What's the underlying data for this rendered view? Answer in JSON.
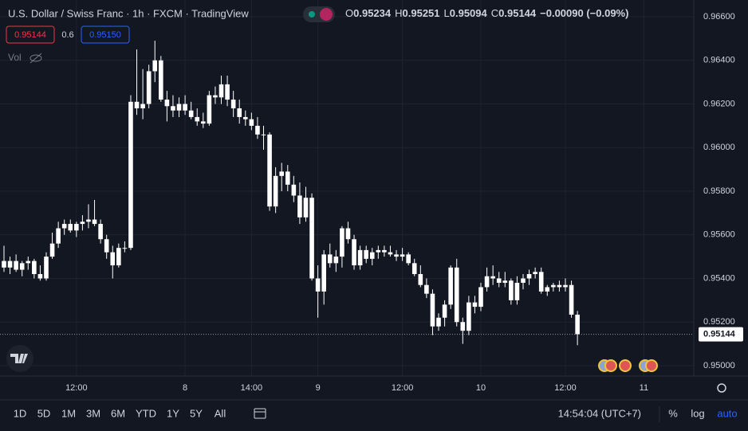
{
  "chart_data": {
    "type": "candlestick",
    "title": "U.S. Dollar / Swiss Franc · 1h · FXCM · TradingView",
    "legend_values": [
      {
        "label": "O",
        "value": "0.95234"
      },
      {
        "label": "H",
        "value": "0.95251"
      },
      {
        "label": "L",
        "value": "0.95094"
      },
      {
        "label": "C",
        "value": "0.95144"
      },
      {
        "label": "",
        "value": "−0.00090 (−0.09%)"
      }
    ],
    "bid": "0.95144",
    "spread": "0.6",
    "ask": "0.95150",
    "volume_label": "Vol",
    "last_price_label": "0.95144",
    "last_price": 0.95144,
    "color": "#ffffff",
    "open": [
      0.9548,
      0.9545,
      0.9548,
      0.9544,
      0.9547,
      0.9548,
      0.9542,
      0.954,
      0.955,
      0.9556,
      0.9563,
      0.9565,
      0.9562,
      0.9565,
      0.9566,
      0.9567,
      0.9565,
      0.9558,
      0.9552,
      0.9546,
      0.9554,
      0.9554,
      0.9621,
      0.9618,
      0.962,
      0.9635,
      0.964,
      0.9622,
      0.9619,
      0.9617,
      0.962,
      0.9617,
      0.9614,
      0.9612,
      0.9611,
      0.9624,
      0.9623,
      0.9629,
      0.9622,
      0.9618,
      0.9614,
      0.9613,
      0.961,
      0.9606,
      0.9606,
      0.9573,
      0.9587,
      0.9589,
      0.9583,
      0.9578,
      0.9568,
      0.9577,
      0.954,
      0.9534,
      0.9551,
      0.9547,
      0.955,
      0.9563,
      0.9558,
      0.9546,
      0.9553,
      0.9549,
      0.9552,
      0.9553,
      0.9552,
      0.9551,
      0.955,
      0.9551,
      0.9547,
      0.9542,
      0.9537,
      0.9533,
      0.9518,
      0.9522,
      0.9528,
      0.9545,
      0.952,
      0.9516,
      0.9529,
      0.9527,
      0.9536,
      0.9541,
      0.954,
      0.9538,
      0.9539,
      0.953,
      0.9538,
      0.954,
      0.9542,
      0.9543,
      0.9534,
      0.9536,
      0.9537,
      0.9536,
      0.9537,
      0.95234
    ],
    "high": [
      0.9555,
      0.955,
      0.9551,
      0.9548,
      0.955,
      0.9549,
      0.9546,
      0.9552,
      0.9561,
      0.9566,
      0.9567,
      0.9567,
      0.9566,
      0.9569,
      0.9574,
      0.9576,
      0.9567,
      0.956,
      0.9555,
      0.9556,
      0.9557,
      0.9624,
      0.9645,
      0.9636,
      0.9638,
      0.9649,
      0.9642,
      0.9626,
      0.9624,
      0.9623,
      0.9624,
      0.9621,
      0.9618,
      0.9616,
      0.9626,
      0.9628,
      0.9633,
      0.9633,
      0.9626,
      0.9622,
      0.9617,
      0.9616,
      0.9614,
      0.961,
      0.9607,
      0.9591,
      0.9593,
      0.9592,
      0.9587,
      0.9584,
      0.9582,
      0.9579,
      0.9546,
      0.9553,
      0.9556,
      0.9553,
      0.9564,
      0.9566,
      0.956,
      0.9555,
      0.9555,
      0.9554,
      0.9555,
      0.9555,
      0.9555,
      0.9553,
      0.9554,
      0.9552,
      0.9549,
      0.9546,
      0.954,
      0.9535,
      0.9524,
      0.953,
      0.9546,
      0.9549,
      0.9522,
      0.9532,
      0.9532,
      0.9538,
      0.9545,
      0.9546,
      0.9543,
      0.9543,
      0.954,
      0.9541,
      0.9542,
      0.9544,
      0.9545,
      0.9545,
      0.9537,
      0.9538,
      0.9539,
      0.954,
      0.9539,
      0.95251
    ],
    "low": [
      0.9543,
      0.9542,
      0.9543,
      0.9541,
      0.9544,
      0.954,
      0.9539,
      0.9539,
      0.9549,
      0.9554,
      0.956,
      0.9561,
      0.9559,
      0.9562,
      0.9563,
      0.9564,
      0.9556,
      0.9549,
      0.954,
      0.9545,
      0.9552,
      0.9553,
      0.9615,
      0.9613,
      0.9618,
      0.963,
      0.9621,
      0.9612,
      0.9614,
      0.9614,
      0.9615,
      0.9613,
      0.961,
      0.9609,
      0.961,
      0.962,
      0.962,
      0.9619,
      0.9614,
      0.9611,
      0.961,
      0.9608,
      0.9604,
      0.9599,
      0.9571,
      0.957,
      0.958,
      0.958,
      0.9575,
      0.9565,
      0.9566,
      0.9539,
      0.9522,
      0.9528,
      0.9545,
      0.9543,
      0.9545,
      0.9556,
      0.9544,
      0.9544,
      0.9547,
      0.9546,
      0.9549,
      0.955,
      0.955,
      0.9548,
      0.9548,
      0.9546,
      0.9541,
      0.9536,
      0.9531,
      0.9514,
      0.9516,
      0.9518,
      0.9526,
      0.9518,
      0.951,
      0.9514,
      0.9524,
      0.9525,
      0.9534,
      0.9537,
      0.9536,
      0.9536,
      0.9528,
      0.9528,
      0.9535,
      0.9537,
      0.954,
      0.9533,
      0.9532,
      0.9534,
      0.9534,
      0.9534,
      0.9522,
      0.95094
    ],
    "close": [
      0.9545,
      0.9548,
      0.9544,
      0.9547,
      0.9548,
      0.9542,
      0.954,
      0.955,
      0.9556,
      0.9563,
      0.9565,
      0.9562,
      0.9565,
      0.9566,
      0.9567,
      0.9565,
      0.9558,
      0.9552,
      0.9546,
      0.9554,
      0.9554,
      0.9621,
      0.9618,
      0.962,
      0.9635,
      0.964,
      0.9622,
      0.9619,
      0.9617,
      0.962,
      0.9617,
      0.9614,
      0.9612,
      0.9611,
      0.9624,
      0.9623,
      0.9629,
      0.9622,
      0.9618,
      0.9614,
      0.9613,
      0.961,
      0.9606,
      0.9606,
      0.9573,
      0.9587,
      0.9589,
      0.9583,
      0.9578,
      0.9568,
      0.9577,
      0.954,
      0.9534,
      0.9551,
      0.9547,
      0.955,
      0.9563,
      0.9558,
      0.9546,
      0.9553,
      0.9549,
      0.9552,
      0.9553,
      0.9552,
      0.9551,
      0.955,
      0.9551,
      0.9547,
      0.9542,
      0.9537,
      0.9533,
      0.9518,
      0.9522,
      0.9528,
      0.9545,
      0.952,
      0.9516,
      0.9529,
      0.9527,
      0.9536,
      0.9541,
      0.954,
      0.9538,
      0.9539,
      0.953,
      0.9538,
      0.954,
      0.9542,
      0.9543,
      0.9534,
      0.9536,
      0.9537,
      0.9536,
      0.9537,
      0.95234,
      0.95144
    ],
    "xlim": [
      -0.66,
      114.27
    ],
    "xticks": [
      {
        "value": 12,
        "label": "12:00"
      },
      {
        "value": 30,
        "label": "8"
      },
      {
        "value": 41,
        "label": "14:00"
      },
      {
        "value": 52,
        "label": "9"
      },
      {
        "value": 66,
        "label": "12:00"
      },
      {
        "value": 79,
        "label": "10"
      },
      {
        "value": 93,
        "label": "12:00"
      },
      {
        "value": 106,
        "label": "11"
      }
    ],
    "ylim": [
      0.95,
      0.966
    ],
    "yticks": [
      {
        "value": 0.95,
        "label": "0.95000"
      },
      {
        "value": 0.952,
        "label": "0.95200"
      },
      {
        "value": 0.954,
        "label": "0.95400"
      },
      {
        "value": 0.956,
        "label": "0.95600"
      },
      {
        "value": 0.958,
        "label": "0.95800"
      },
      {
        "value": 0.96,
        "label": "0.96000"
      },
      {
        "value": 0.962,
        "label": "0.96200"
      },
      {
        "value": 0.964,
        "label": "0.96400"
      },
      {
        "value": 0.966,
        "label": "0.96600"
      }
    ],
    "grid": true,
    "toolbar": {
      "ranges": [
        "1D",
        "5D",
        "1M",
        "3M",
        "6M",
        "YTD",
        "1Y",
        "5Y",
        "All"
      ],
      "clock": "14:54:04 (UTC+7)",
      "percent": "%",
      "log": "log",
      "auto": "auto"
    }
  }
}
